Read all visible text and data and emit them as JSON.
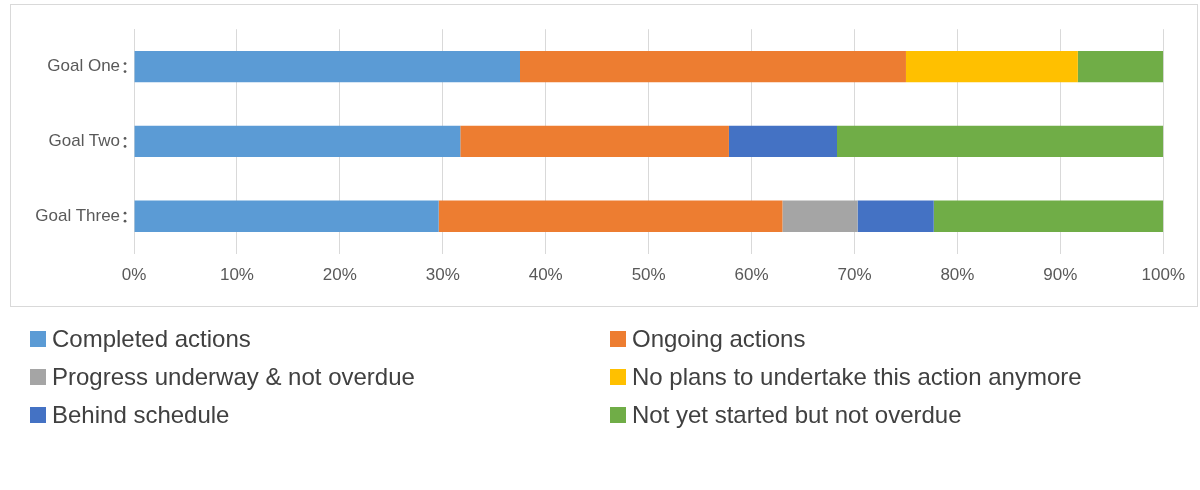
{
  "chart_data": {
    "type": "bar",
    "orientation": "horizontal",
    "stacked": true,
    "categories": [
      "Goal One",
      "Goal Two",
      "Goal Three"
    ],
    "series": [
      {
        "name": "Completed actions",
        "color": "#5b9bd5",
        "values": [
          37.5,
          31.7,
          29.6
        ]
      },
      {
        "name": "Ongoing actions",
        "color": "#ed7d31",
        "values": [
          37.5,
          26.1,
          33.4
        ]
      },
      {
        "name": "Progress underway & not overdue",
        "color": "#a5a5a5",
        "values": [
          null,
          null,
          7.3
        ]
      },
      {
        "name": "No plans to undertake this action anymore",
        "color": "#ffc000",
        "values": [
          16.7,
          null,
          null
        ]
      },
      {
        "name": "Behind schedule",
        "color": "#4472c4",
        "values": [
          null,
          10.5,
          7.4
        ]
      },
      {
        "name": "Not yet started but not overdue",
        "color": "#70ad47",
        "values": [
          8.3,
          31.7,
          22.3
        ]
      }
    ],
    "xlim": [
      0,
      100
    ],
    "xticks": [
      {
        "value": 0,
        "label": "0%"
      },
      {
        "value": 10,
        "label": "10%"
      },
      {
        "value": 20,
        "label": "20%"
      },
      {
        "value": 30,
        "label": "30%"
      },
      {
        "value": 40,
        "label": "40%"
      },
      {
        "value": 50,
        "label": "50%"
      },
      {
        "value": 60,
        "label": "60%"
      },
      {
        "value": 70,
        "label": "70%"
      },
      {
        "value": 80,
        "label": "80%"
      },
      {
        "value": 90,
        "label": "90%"
      },
      {
        "value": 100,
        "label": "100%"
      }
    ],
    "grid": "x",
    "legend": "bottom"
  }
}
